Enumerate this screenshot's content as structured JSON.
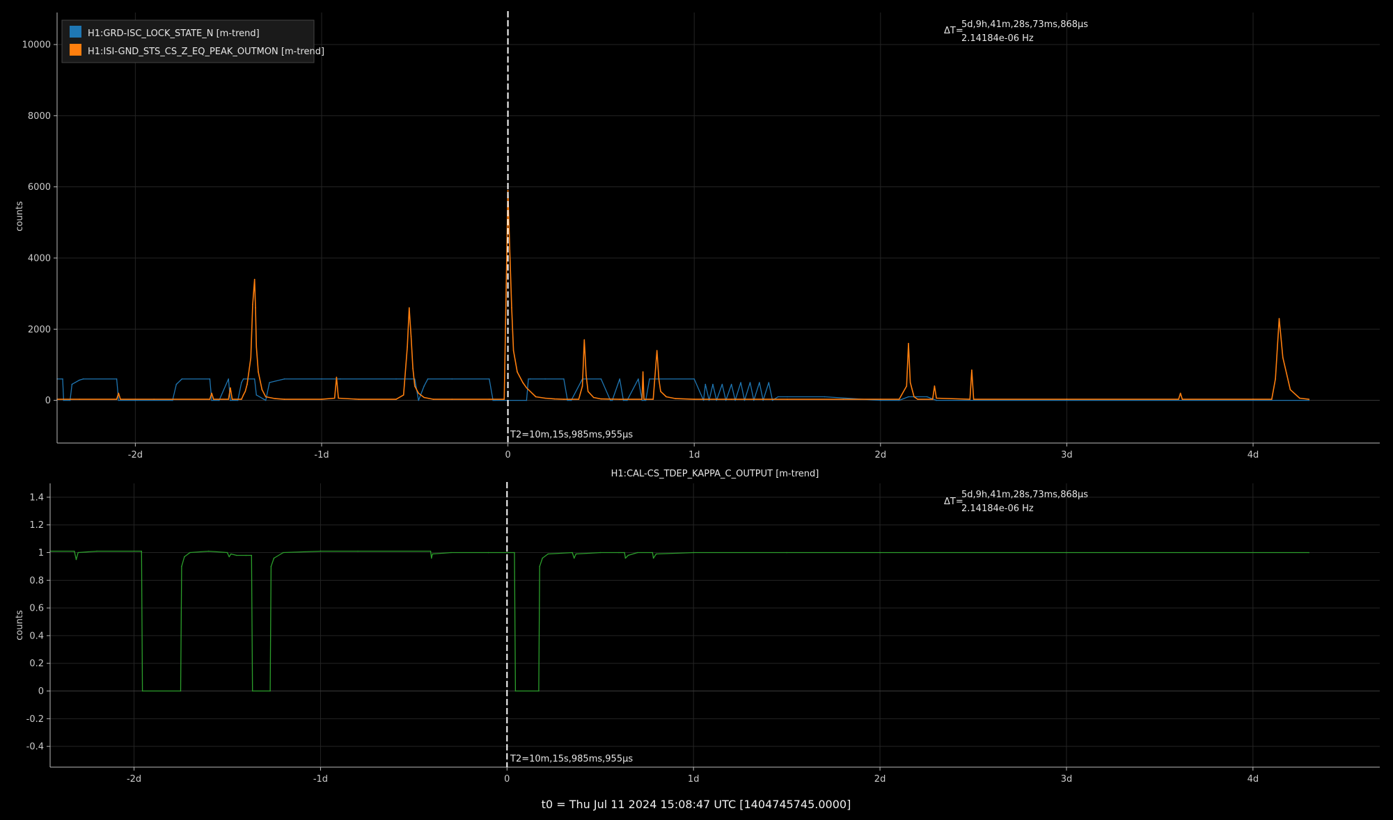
{
  "chart_data": [
    {
      "type": "line",
      "title": "",
      "xlabel": "",
      "ylabel": "counts",
      "xlim": [
        -2.42,
        4.68
      ],
      "ylim": [
        -1200,
        10900
      ],
      "x_ticks": [
        {
          "v": -2,
          "label": "-2d"
        },
        {
          "v": -1,
          "label": "-1d"
        },
        {
          "v": 0,
          "label": "0"
        },
        {
          "v": 1,
          "label": "1d"
        },
        {
          "v": 2,
          "label": "2d"
        },
        {
          "v": 3,
          "label": "3d"
        },
        {
          "v": 4,
          "label": "4d"
        }
      ],
      "y_ticks": [
        {
          "v": 0,
          "label": "0"
        },
        {
          "v": 2000,
          "label": "2000"
        },
        {
          "v": 4000,
          "label": "4000"
        },
        {
          "v": 6000,
          "label": "6000"
        },
        {
          "v": 8000,
          "label": "8000"
        },
        {
          "v": 10000,
          "label": "10000"
        }
      ],
      "grid": true,
      "legend_position": "top-left",
      "cursor": {
        "x": 0,
        "label": "T2=10m,15s,985ms,955µs"
      },
      "delta": {
        "prefix": "ΔT=",
        "line1": "5d,9h,41m,28s,73ms,868µs",
        "line2": "2.14184e-06 Hz"
      },
      "series": [
        {
          "name": "H1:GRD-ISC_LOCK_STATE_N [m-trend]",
          "color": "#1f77b4",
          "x": [
            -2.42,
            -2.39,
            -2.385,
            -2.35,
            -2.34,
            -2.3,
            -2.28,
            -2.1,
            -2.09,
            -2.0,
            -1.8,
            -1.78,
            -1.75,
            -1.6,
            -1.59,
            -1.55,
            -1.5,
            -1.49,
            -1.45,
            -1.43,
            -1.42,
            -1.36,
            -1.35,
            -1.3,
            -1.28,
            -1.2,
            -1.0,
            -0.9,
            -0.6,
            -0.5,
            -0.48,
            -0.45,
            -0.43,
            -0.3,
            -0.1,
            -0.08,
            -0.07,
            0.1,
            0.11,
            0.12,
            0.2,
            0.3,
            0.32,
            0.34,
            0.4,
            0.5,
            0.55,
            0.56,
            0.6,
            0.62,
            0.64,
            0.7,
            0.72,
            0.74,
            0.76,
            0.78,
            1.0,
            1.05,
            1.06,
            1.08,
            1.1,
            1.12,
            1.15,
            1.17,
            1.2,
            1.22,
            1.25,
            1.27,
            1.3,
            1.32,
            1.35,
            1.37,
            1.4,
            1.42,
            1.45,
            1.5,
            1.7,
            2.0,
            2.1,
            2.15,
            2.25,
            2.3,
            4.3
          ],
          "y": [
            600,
            600,
            0,
            0,
            450,
            570,
            600,
            600,
            0,
            0,
            0,
            450,
            600,
            600,
            0,
            0,
            600,
            0,
            0,
            500,
            600,
            600,
            150,
            0,
            500,
            600,
            600,
            600,
            600,
            600,
            0,
            400,
            600,
            600,
            600,
            0,
            0,
            0,
            600,
            600,
            600,
            600,
            0,
            0,
            600,
            600,
            0,
            0,
            600,
            0,
            0,
            600,
            0,
            0,
            600,
            600,
            600,
            0,
            450,
            0,
            450,
            0,
            450,
            0,
            450,
            0,
            500,
            0,
            500,
            0,
            500,
            0,
            500,
            0,
            100,
            100,
            100,
            0,
            0,
            100,
            100,
            0,
            0
          ]
        },
        {
          "name": "H1:ISI-GND_STS_CS_Z_EQ_PEAK_OUTMON [m-trend]",
          "color": "#ff7f0e",
          "x": [
            -2.42,
            -2.3,
            -2.1,
            -2.09,
            -2.08,
            -1.9,
            -1.6,
            -1.59,
            -1.58,
            -1.5,
            -1.49,
            -1.48,
            -1.43,
            -1.42,
            -1.41,
            -1.4,
            -1.38,
            -1.37,
            -1.36,
            -1.355,
            -1.35,
            -1.34,
            -1.32,
            -1.3,
            -1.25,
            -1.2,
            -1.0,
            -0.93,
            -0.92,
            -0.91,
            -0.8,
            -0.6,
            -0.56,
            -0.54,
            -0.53,
            -0.52,
            -0.51,
            -0.5,
            -0.48,
            -0.45,
            -0.4,
            -0.3,
            -0.1,
            -0.02,
            0,
            0.01,
            0.02,
            0.03,
            0.05,
            0.08,
            0.1,
            0.13,
            0.15,
            0.2,
            0.25,
            0.3,
            0.38,
            0.4,
            0.41,
            0.42,
            0.43,
            0.46,
            0.5,
            0.6,
            0.72,
            0.725,
            0.73,
            0.78,
            0.8,
            0.81,
            0.82,
            0.85,
            0.9,
            1.0,
            1.2,
            1.5,
            1.8,
            2.0,
            2.1,
            2.14,
            2.15,
            2.16,
            2.18,
            2.2,
            2.28,
            2.29,
            2.3,
            2.48,
            2.49,
            2.5,
            3.0,
            3.6,
            3.61,
            3.62,
            4.0,
            4.1,
            4.12,
            4.14,
            4.16,
            4.2,
            4.25,
            4.3
          ],
          "y": [
            30,
            30,
            30,
            200,
            30,
            30,
            30,
            200,
            30,
            30,
            350,
            30,
            30,
            150,
            250,
            450,
            1200,
            2700,
            3400,
            2600,
            1500,
            800,
            300,
            100,
            50,
            30,
            30,
            60,
            650,
            60,
            30,
            30,
            150,
            1500,
            2600,
            1800,
            900,
            400,
            200,
            80,
            30,
            30,
            30,
            30,
            5900,
            4200,
            2600,
            1400,
            800,
            500,
            350,
            200,
            100,
            60,
            40,
            30,
            30,
            400,
            1700,
            700,
            250,
            80,
            40,
            30,
            30,
            800,
            30,
            30,
            1400,
            600,
            250,
            100,
            50,
            30,
            30,
            30,
            30,
            30,
            30,
            400,
            1600,
            500,
            100,
            30,
            30,
            400,
            60,
            30,
            850,
            30,
            30,
            30,
            200,
            30,
            30,
            30,
            600,
            2300,
            1200,
            300,
            60,
            30
          ]
        }
      ]
    },
    {
      "type": "line",
      "title": "H1:CAL-CS_TDEP_KAPPA_C_OUTPUT [m-trend]",
      "xlabel": "",
      "ylabel": "counts",
      "xlim": [
        -2.45,
        4.68
      ],
      "ylim": [
        -0.55,
        1.5
      ],
      "x_ticks": [
        {
          "v": -2,
          "label": "-2d"
        },
        {
          "v": -1,
          "label": "-1d"
        },
        {
          "v": 0,
          "label": "0"
        },
        {
          "v": 1,
          "label": "1d"
        },
        {
          "v": 2,
          "label": "2d"
        },
        {
          "v": 3,
          "label": "3d"
        },
        {
          "v": 4,
          "label": "4d"
        }
      ],
      "y_ticks": [
        {
          "v": -0.4,
          "label": "-0.4"
        },
        {
          "v": -0.2,
          "label": "-0.2"
        },
        {
          "v": 0,
          "label": "0"
        },
        {
          "v": 0.2,
          "label": "0.2"
        },
        {
          "v": 0.4,
          "label": "0.4"
        },
        {
          "v": 0.6,
          "label": "0.6"
        },
        {
          "v": 0.8,
          "label": "0.8"
        },
        {
          "v": 1,
          "label": "1"
        },
        {
          "v": 1.2,
          "label": "1.2"
        },
        {
          "v": 1.4,
          "label": "1.4"
        }
      ],
      "grid": true,
      "cursor": {
        "x": 0,
        "label": "T2=10m,15s,985ms,955µs"
      },
      "delta": {
        "prefix": "ΔT=",
        "line1": "5d,9h,41m,28s,73ms,868µs",
        "line2": "2.14184e-06 Hz"
      },
      "series": [
        {
          "color": "#2ca02c",
          "x": [
            -2.45,
            -2.32,
            -2.31,
            -2.3,
            -2.2,
            -1.96,
            -1.955,
            -1.75,
            -1.745,
            -1.73,
            -1.7,
            -1.6,
            -1.5,
            -1.49,
            -1.48,
            -1.45,
            -1.4,
            -1.37,
            -1.365,
            -1.27,
            -1.265,
            -1.25,
            -1.2,
            -1.0,
            -0.8,
            -0.41,
            -0.405,
            -0.4,
            -0.3,
            -0.1,
            0.04,
            0.045,
            0.17,
            0.175,
            0.19,
            0.22,
            0.35,
            0.36,
            0.37,
            0.5,
            0.6,
            0.63,
            0.635,
            0.65,
            0.7,
            0.78,
            0.785,
            0.8,
            1.0,
            1.5,
            2.0,
            3.0,
            4.3
          ],
          "y": [
            1.01,
            1.01,
            0.95,
            1.0,
            1.01,
            1.01,
            0,
            0,
            0.9,
            0.97,
            1.0,
            1.01,
            1.0,
            0.97,
            0.99,
            0.98,
            0.98,
            0.98,
            0,
            0,
            0.9,
            0.96,
            1.0,
            1.01,
            1.01,
            1.01,
            0.96,
            0.99,
            1.0,
            1.0,
            1.0,
            0,
            0,
            0.9,
            0.96,
            0.99,
            1.0,
            0.96,
            0.99,
            1.0,
            1.0,
            1.0,
            0.96,
            0.98,
            1.0,
            1.0,
            0.96,
            0.99,
            1.0,
            1.0,
            1.0,
            1.0,
            1.0
          ]
        }
      ]
    }
  ],
  "footer": "t0 = Thu Jul 11 2024 15:08:47 UTC [1404745745.0000]"
}
